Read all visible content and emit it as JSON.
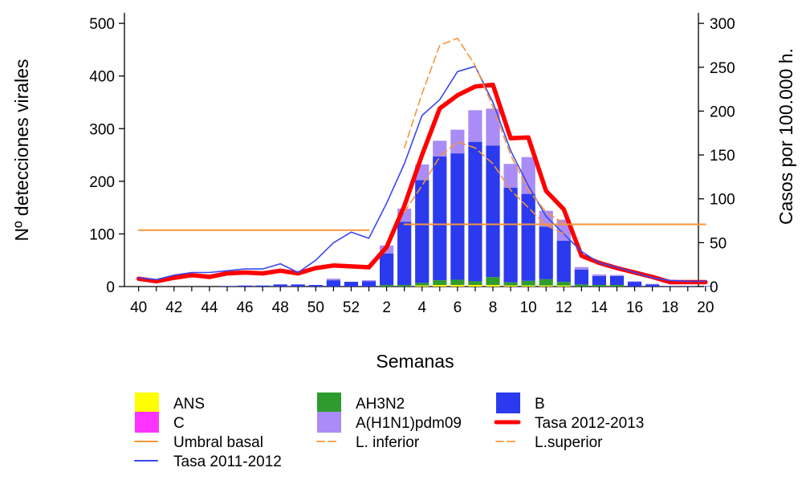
{
  "chart_data": {
    "type": "bar",
    "xlabel": "Semanas",
    "ylabel_left": "Nº detecciones virales",
    "ylabel_right": "Casos por 100.000 h.",
    "weeks": [
      40,
      41,
      42,
      43,
      44,
      45,
      46,
      47,
      48,
      49,
      50,
      51,
      52,
      1,
      2,
      3,
      4,
      5,
      6,
      7,
      8,
      9,
      10,
      11,
      12,
      13,
      14,
      15,
      16,
      17,
      18,
      19,
      20
    ],
    "x_tick_labels": [
      "40",
      "42",
      "44",
      "46",
      "48",
      "50",
      "52",
      "2",
      "4",
      "6",
      "8",
      "10",
      "12",
      "14",
      "16",
      "18",
      "20"
    ],
    "y_left_ticks": [
      "0",
      "100",
      "200",
      "300",
      "400",
      "500"
    ],
    "y_right_ticks": [
      "0",
      "50",
      "100",
      "150",
      "200",
      "250",
      "300"
    ],
    "ylim_left": [
      0,
      520
    ],
    "ylim_right": [
      0,
      312
    ],
    "bar_series": [
      {
        "name": "ANS",
        "color": "#ffff00",
        "values": [
          0,
          0,
          0,
          0,
          0,
          0,
          0,
          0,
          0,
          0,
          0,
          0,
          0,
          0,
          0,
          0,
          2,
          3,
          3,
          3,
          3,
          2,
          2,
          2,
          2,
          0,
          0,
          0,
          0,
          0,
          0,
          0,
          0
        ]
      },
      {
        "name": "C",
        "color": "#ff33ff",
        "values": [
          0,
          0,
          0,
          0,
          0,
          0,
          0,
          0,
          0,
          0,
          0,
          0,
          0,
          0,
          0,
          0,
          0,
          0,
          0,
          0,
          0,
          0,
          0,
          0,
          0,
          0,
          0,
          0,
          0,
          0,
          0,
          0,
          0
        ]
      },
      {
        "name": "AH3N2",
        "color": "#2e9b2e",
        "values": [
          0,
          0,
          0,
          0,
          0,
          0,
          0,
          0,
          0,
          0,
          0,
          0,
          0,
          0,
          3,
          3,
          5,
          9,
          10,
          7,
          15,
          6,
          9,
          12,
          7,
          4,
          3,
          3,
          0,
          0,
          0,
          0,
          0
        ]
      },
      {
        "name": "B",
        "color": "#2b3aee",
        "values": [
          0,
          0,
          0,
          0,
          0,
          1,
          2,
          2,
          4,
          4,
          3,
          12,
          9,
          10,
          60,
          120,
          195,
          235,
          240,
          265,
          250,
          180,
          165,
          100,
          78,
          28,
          17,
          17,
          9,
          4,
          1,
          1,
          1
        ]
      },
      {
        "name": "A(H1N1)pdm09",
        "color": "#a98cf5",
        "values": [
          0,
          0,
          0,
          0,
          0,
          0,
          0,
          0,
          0,
          0,
          0,
          3,
          0,
          2,
          15,
          25,
          30,
          30,
          45,
          60,
          70,
          45,
          70,
          30,
          40,
          5,
          3,
          2,
          1,
          1,
          0,
          0,
          0
        ]
      }
    ],
    "line_series": [
      {
        "name": "Tasa 2012-2013",
        "color": "#ff0000",
        "axis": "right",
        "style": "thick",
        "values": [
          9,
          6,
          10,
          13,
          11,
          15,
          16,
          15,
          18,
          15,
          21,
          24,
          23,
          22,
          45,
          92,
          150,
          203,
          218,
          228,
          230,
          169,
          170,
          109,
          88,
          35,
          27,
          21,
          16,
          11,
          5,
          5,
          5
        ]
      },
      {
        "name": "Tasa 2011-2012",
        "color": "#3a48f0",
        "axis": "right",
        "style": "thin",
        "values": [
          10,
          8,
          13,
          16,
          16,
          18,
          20,
          20,
          26,
          16,
          30,
          50,
          62,
          55,
          95,
          140,
          195,
          213,
          245,
          251,
          210,
          155,
          115,
          80,
          60,
          40,
          27,
          22,
          16,
          10,
          7,
          6,
          6
        ]
      },
      {
        "name": "Umbral basal",
        "color": "#f7953b",
        "axis": "right",
        "style": "solid",
        "segments": [
          [
            40,
            1,
            64.3
          ],
          [
            3,
            20,
            70.9
          ]
        ]
      },
      {
        "name": "L. inferior",
        "color": "#f7953b",
        "axis": "right",
        "style": "dashed",
        "weeks": [
          3,
          4,
          5,
          6,
          7,
          8,
          9,
          10,
          11,
          12
        ],
        "values": [
          85,
          115,
          148,
          165,
          158,
          140,
          110,
          90,
          70,
          60
        ]
      },
      {
        "name": "L.superior",
        "color": "#f7953b",
        "axis": "right",
        "style": "dashed",
        "weeks": [
          3,
          4,
          5,
          6,
          7,
          8,
          9,
          10,
          11,
          12
        ],
        "values": [
          158,
          220,
          275,
          283,
          252,
          205,
          150,
          110,
          85,
          72
        ]
      }
    ],
    "legend": {
      "position": "bottom",
      "items": [
        {
          "label": "ANS",
          "kind": "box",
          "color": "#ffff00"
        },
        {
          "label": "AH3N2",
          "kind": "box",
          "color": "#2e9b2e"
        },
        {
          "label": "B",
          "kind": "box",
          "color": "#2b3aee"
        },
        {
          "label": "C",
          "kind": "box",
          "color": "#ff33ff"
        },
        {
          "label": "A(H1N1)pdm09",
          "kind": "box",
          "color": "#a98cf5"
        },
        {
          "label": "Tasa 2012-2013",
          "kind": "thick-line",
          "color": "#ff0000"
        },
        {
          "label": "Umbral basal",
          "kind": "line",
          "color": "#f7953b"
        },
        {
          "label": "L. inferior",
          "kind": "dash",
          "color": "#f7953b"
        },
        {
          "label": "L.superior",
          "kind": "dash",
          "color": "#f7953b"
        },
        {
          "label": "Tasa 2011-2012",
          "kind": "line",
          "color": "#3a48f0"
        }
      ]
    }
  }
}
